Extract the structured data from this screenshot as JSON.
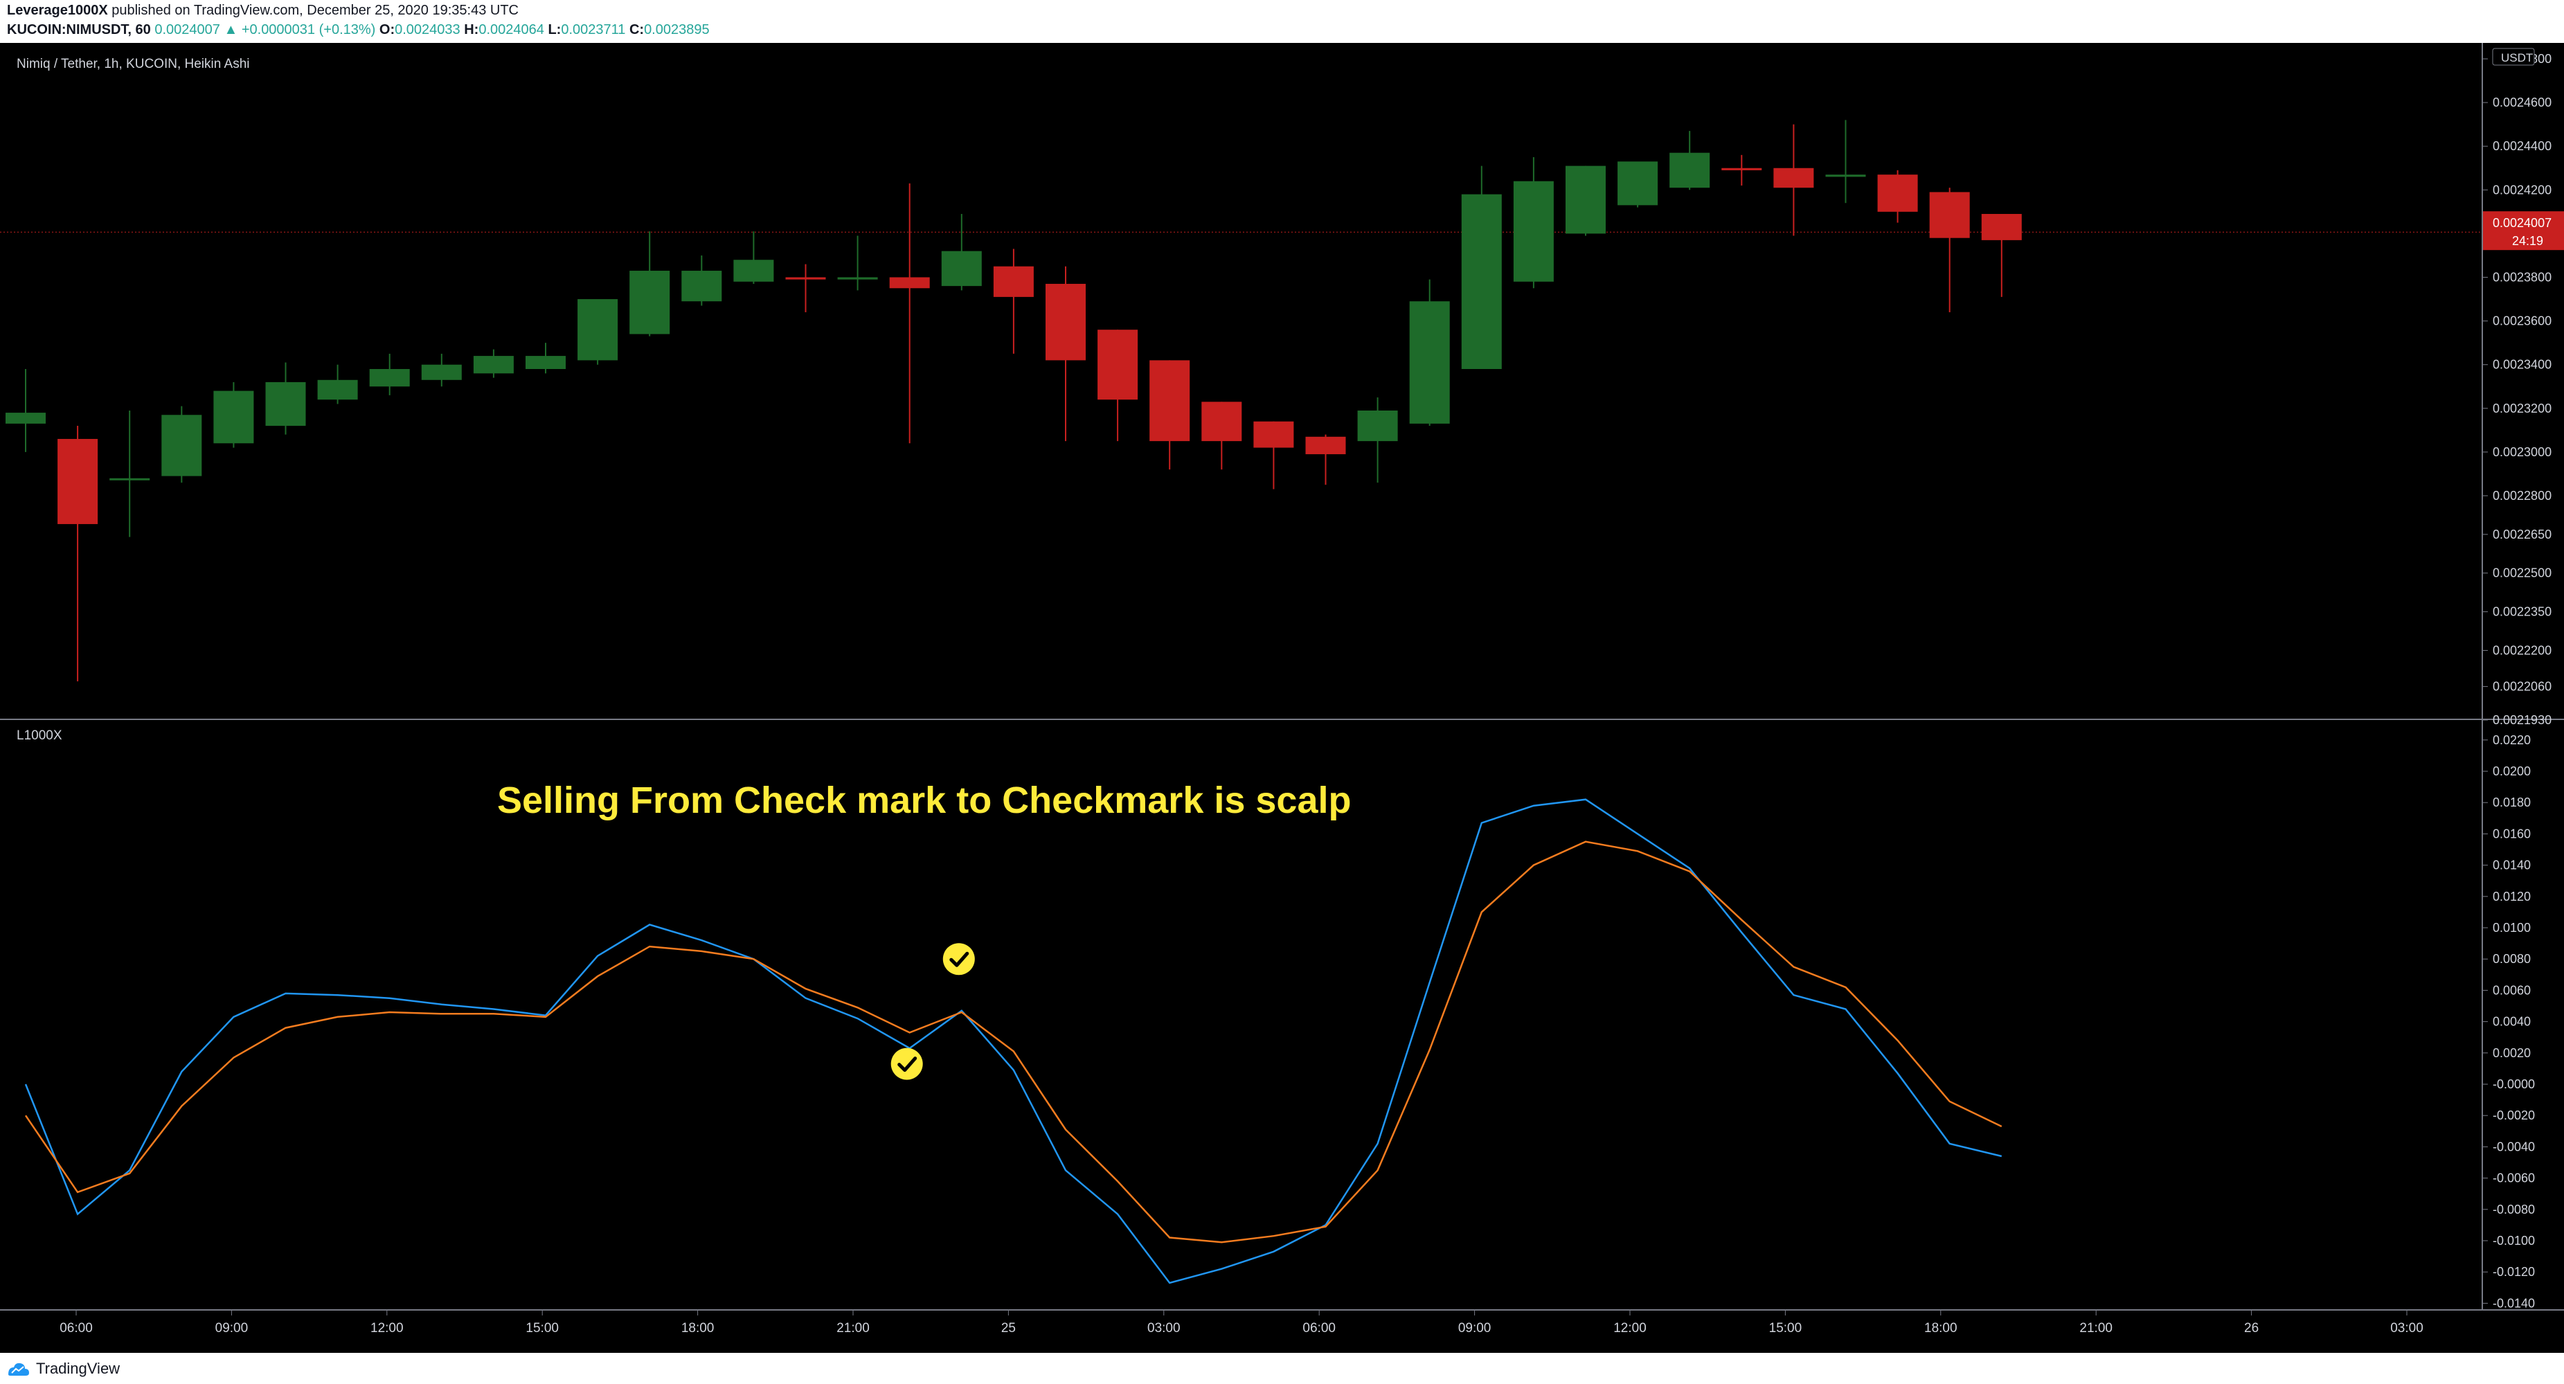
{
  "header": {
    "author": "Leverage1000X",
    "published_text": " published on TradingView.com, December 25, 2020 19:35:43 UTC",
    "symbol_interval": "KUCOIN:NIMUSDT, 60",
    "last_price": "0.0024007",
    "change": "+0.0000031 (+0.13%)",
    "open_label": "O:",
    "open": "0.0024033",
    "high_label": "H:",
    "high": "0.0024064",
    "low_label": "L:",
    "low": "0.0023711",
    "close_label": "C:",
    "close": "0.0023895"
  },
  "footer": {
    "brand": "TradingView"
  },
  "colors": {
    "up": "#1e6b2a",
    "down": "#c8201f",
    "blue_line": "#2196f3",
    "orange_line": "#f57c1f",
    "annotation": "#ffeb3b"
  },
  "icons": {
    "check": "checkmark-circle-icon",
    "logo": "tradingview-logo-icon"
  },
  "chart_data": [
    {
      "type": "candlestick",
      "title": "Nimiq / Tether, 1h, KUCOIN, Heikin Ashi",
      "currency": "USDT",
      "price_ticks": [
        "0.0024800",
        "0.0024600",
        "0.0024400",
        "0.0024200",
        "0.0024000",
        "0.0023800",
        "0.0023600",
        "0.0023400",
        "0.0023200",
        "0.0023000",
        "0.0022800",
        "0.0022650",
        "0.0022500",
        "0.0022350",
        "0.0022200",
        "0.0022060",
        "0.0021930"
      ],
      "last_price_tag": "0.0024007",
      "countdown_tag": "24:19",
      "last_price_value": 0.0024007,
      "candles": [
        {
          "o": 0.002313,
          "h": 0.002338,
          "l": 0.0023,
          "c": 0.002318
        },
        {
          "o": 0.002306,
          "h": 0.002312,
          "l": 0.002208,
          "c": 0.002269
        },
        {
          "o": 0.002288,
          "h": 0.002319,
          "l": 0.002264,
          "c": 0.002288
        },
        {
          "o": 0.002289,
          "h": 0.002321,
          "l": 0.002286,
          "c": 0.002317
        },
        {
          "o": 0.002304,
          "h": 0.002332,
          "l": 0.002302,
          "c": 0.002328
        },
        {
          "o": 0.002312,
          "h": 0.002341,
          "l": 0.002308,
          "c": 0.002332
        },
        {
          "o": 0.002324,
          "h": 0.00234,
          "l": 0.002322,
          "c": 0.002333
        },
        {
          "o": 0.00233,
          "h": 0.002345,
          "l": 0.002326,
          "c": 0.002338
        },
        {
          "o": 0.002333,
          "h": 0.002345,
          "l": 0.00233,
          "c": 0.00234
        },
        {
          "o": 0.002336,
          "h": 0.002347,
          "l": 0.002334,
          "c": 0.002344
        },
        {
          "o": 0.002338,
          "h": 0.00235,
          "l": 0.002336,
          "c": 0.002344
        },
        {
          "o": 0.002342,
          "h": 0.002369,
          "l": 0.00234,
          "c": 0.00237
        },
        {
          "o": 0.002354,
          "h": 0.002401,
          "l": 0.002353,
          "c": 0.002383
        },
        {
          "o": 0.002369,
          "h": 0.00239,
          "l": 0.002367,
          "c": 0.002383
        },
        {
          "o": 0.002378,
          "h": 0.002401,
          "l": 0.002377,
          "c": 0.002388
        },
        {
          "o": 0.00238,
          "h": 0.002386,
          "l": 0.002364,
          "c": 0.002379
        },
        {
          "o": 0.002379,
          "h": 0.002399,
          "l": 0.002374,
          "c": 0.00238
        },
        {
          "o": 0.00238,
          "h": 0.002423,
          "l": 0.002304,
          "c": 0.002375
        },
        {
          "o": 0.002376,
          "h": 0.002409,
          "l": 0.002374,
          "c": 0.002392
        },
        {
          "o": 0.002385,
          "h": 0.002393,
          "l": 0.002345,
          "c": 0.002371
        },
        {
          "o": 0.002377,
          "h": 0.002385,
          "l": 0.002305,
          "c": 0.002342
        },
        {
          "o": 0.002356,
          "h": 0.002356,
          "l": 0.002305,
          "c": 0.002324
        },
        {
          "o": 0.002342,
          "h": 0.002342,
          "l": 0.002292,
          "c": 0.002305
        },
        {
          "o": 0.002323,
          "h": 0.002323,
          "l": 0.002292,
          "c": 0.002305
        },
        {
          "o": 0.002314,
          "h": 0.002314,
          "l": 0.002283,
          "c": 0.002302
        },
        {
          "o": 0.002307,
          "h": 0.002308,
          "l": 0.002285,
          "c": 0.002299
        },
        {
          "o": 0.002305,
          "h": 0.002325,
          "l": 0.002286,
          "c": 0.002319
        },
        {
          "o": 0.002313,
          "h": 0.002379,
          "l": 0.002312,
          "c": 0.002369
        },
        {
          "o": 0.002338,
          "h": 0.002431,
          "l": 0.002338,
          "c": 0.002418
        },
        {
          "o": 0.002378,
          "h": 0.002435,
          "l": 0.002375,
          "c": 0.002424
        },
        {
          "o": 0.0024,
          "h": 0.002431,
          "l": 0.002399,
          "c": 0.002431
        },
        {
          "o": 0.002413,
          "h": 0.002432,
          "l": 0.002412,
          "c": 0.002433
        },
        {
          "o": 0.002421,
          "h": 0.002447,
          "l": 0.00242,
          "c": 0.002437
        },
        {
          "o": 0.00243,
          "h": 0.002436,
          "l": 0.002422,
          "c": 0.002429
        },
        {
          "o": 0.00243,
          "h": 0.00245,
          "l": 0.002399,
          "c": 0.002421
        },
        {
          "o": 0.002426,
          "h": 0.002452,
          "l": 0.002414,
          "c": 0.002427
        },
        {
          "o": 0.002427,
          "h": 0.002429,
          "l": 0.002405,
          "c": 0.00241
        },
        {
          "o": 0.002419,
          "h": 0.002421,
          "l": 0.002364,
          "c": 0.002398
        },
        {
          "o": 0.002409,
          "h": 0.002409,
          "l": 0.002371,
          "c": 0.002397
        }
      ]
    },
    {
      "type": "line",
      "title": "L1000X",
      "annotation": "Selling From Check mark to Checkmark is scalp",
      "y_ticks": [
        "0.0220",
        "0.0200",
        "0.0180",
        "0.0160",
        "0.0140",
        "0.0120",
        "0.0100",
        "0.0080",
        "0.0060",
        "0.0040",
        "0.0020",
        "-0.0000",
        "-0.0020",
        "-0.0040",
        "-0.0060",
        "-0.0080",
        "-0.0100",
        "-0.0120",
        "-0.0140"
      ],
      "series": [
        {
          "color": "#2196f3",
          "values": [
            -0.0,
            -0.0083,
            -0.0055,
            0.0008,
            0.0043,
            0.0058,
            0.0057,
            0.0055,
            0.0051,
            0.0048,
            0.0044,
            0.0082,
            0.0102,
            0.0092,
            0.008,
            0.0055,
            0.0042,
            0.0023,
            0.0047,
            0.0009,
            -0.0055,
            -0.0083,
            -0.0127,
            -0.0118,
            -0.0107,
            -0.009,
            -0.0038,
            0.0065,
            0.0167,
            0.0178,
            0.0182,
            0.016,
            0.0138,
            0.0097,
            0.0057,
            0.0048,
            0.0007,
            -0.0038,
            -0.0046
          ]
        },
        {
          "color": "#f57c1f",
          "values": [
            -0.002,
            -0.0069,
            -0.0057,
            -0.0014,
            0.0017,
            0.0036,
            0.0043,
            0.0046,
            0.0045,
            0.0045,
            0.0043,
            0.0069,
            0.0088,
            0.0085,
            0.008,
            0.0061,
            0.0049,
            0.0033,
            0.0046,
            0.0021,
            -0.0029,
            -0.0062,
            -0.0098,
            -0.0101,
            -0.0097,
            -0.0091,
            -0.0055,
            0.0022,
            0.011,
            0.014,
            0.0155,
            0.0149,
            0.0136,
            0.0105,
            0.0075,
            0.0062,
            0.0028,
            -0.0011,
            -0.0027
          ]
        }
      ],
      "checkmarks": [
        {
          "index": 18,
          "value": 0.008
        },
        {
          "index": 17,
          "value": 0.0013
        }
      ]
    }
  ],
  "x_ticks": [
    "06:00",
    "09:00",
    "12:00",
    "15:00",
    "18:00",
    "21:00",
    "25",
    "03:00",
    "06:00",
    "09:00",
    "12:00",
    "15:00",
    "18:00",
    "21:00",
    "26",
    "03:00"
  ]
}
